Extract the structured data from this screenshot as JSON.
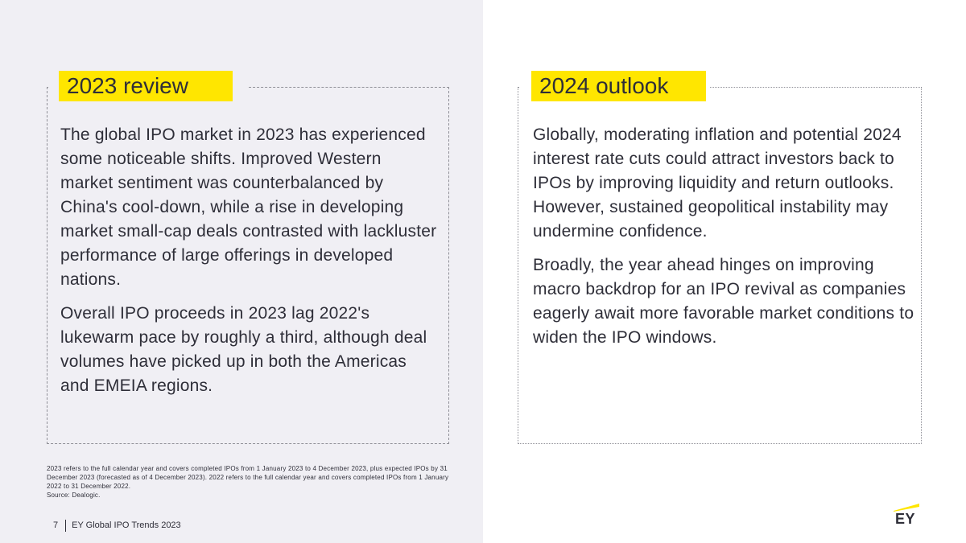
{
  "review": {
    "title": "2023 review",
    "paragraphs": [
      "The global IPO market in 2023 has experienced some noticeable shifts. Improved Western market sentiment was counterbalanced by China's cool-down, while a rise in developing market small-cap deals contrasted with lackluster performance of large offerings in developed nations.",
      "Overall IPO proceeds in 2023 lag 2022's lukewarm pace by roughly a third, although deal volumes have picked up in both the Americas and EMEIA regions."
    ]
  },
  "outlook": {
    "title": "2024 outlook",
    "paragraphs": [
      "Globally, moderating inflation and potential 2024 interest rate cuts could attract investors back to IPOs by improving liquidity and return outlooks. However, sustained geopolitical instability may undermine confidence.",
      "Broadly, the year ahead hinges on improving macro backdrop for an IPO revival as companies eagerly await more favorable market conditions to widen the IPO windows."
    ]
  },
  "footnote": {
    "text": "2023 refers to the full calendar year and covers completed IPOs from 1 January 2023 to 4 December 2023, plus expected IPOs by 31 December 2023 (forecasted as of 4 December 2023). 2022 refers to the full calendar year and covers completed IPOs from 1 January 2022 to 31 December 2022.",
    "source": "Source: Dealogic."
  },
  "footer": {
    "page_number": "7",
    "report_title": "EY Global IPO Trends 2023"
  },
  "logo": {
    "text": "EY",
    "icon": "ey-logo-beam",
    "beam_color": "#ffe600"
  },
  "colors": {
    "accent": "#ffe600",
    "panel_bg": "#f0eff4",
    "text": "#2e2e38"
  }
}
